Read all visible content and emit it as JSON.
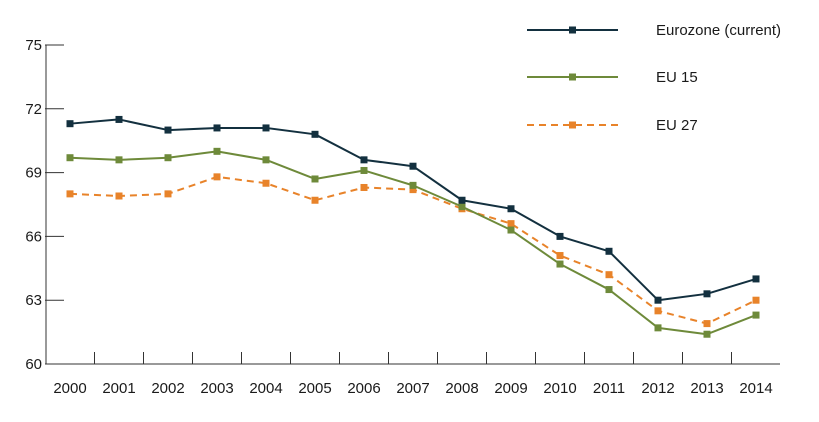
{
  "chart_data": {
    "type": "line",
    "title": "",
    "xlabel": "",
    "ylabel": "",
    "x": [
      "2000",
      "2001",
      "2002",
      "2003",
      "2004",
      "2005",
      "2006",
      "2007",
      "2008",
      "2009",
      "2010",
      "2011",
      "2012",
      "2013",
      "2014"
    ],
    "ylim": [
      60,
      75
    ],
    "yticks": [
      60,
      63,
      66,
      69,
      72,
      75
    ],
    "grid": false,
    "legend_position": "top-right",
    "series": [
      {
        "name": "Eurozone (current)",
        "color": "#13303f",
        "line_style": "solid",
        "marker": "square",
        "values": [
          71.3,
          71.5,
          71.0,
          71.1,
          71.1,
          70.8,
          69.6,
          69.3,
          67.7,
          67.3,
          66.0,
          65.3,
          63.0,
          63.3,
          64.0
        ]
      },
      {
        "name": "EU 15",
        "color": "#6e8a3a",
        "line_style": "solid",
        "marker": "square",
        "values": [
          69.7,
          69.6,
          69.7,
          70.0,
          69.6,
          68.7,
          69.1,
          68.4,
          67.4,
          66.3,
          64.7,
          63.5,
          61.7,
          61.4,
          62.3
        ]
      },
      {
        "name": "EU 27",
        "color": "#e8832a",
        "line_style": "dashed",
        "marker": "square",
        "values": [
          68.0,
          67.9,
          68.0,
          68.8,
          68.5,
          67.7,
          68.3,
          68.2,
          67.3,
          66.6,
          65.1,
          64.2,
          62.5,
          61.9,
          63.0
        ]
      }
    ]
  }
}
